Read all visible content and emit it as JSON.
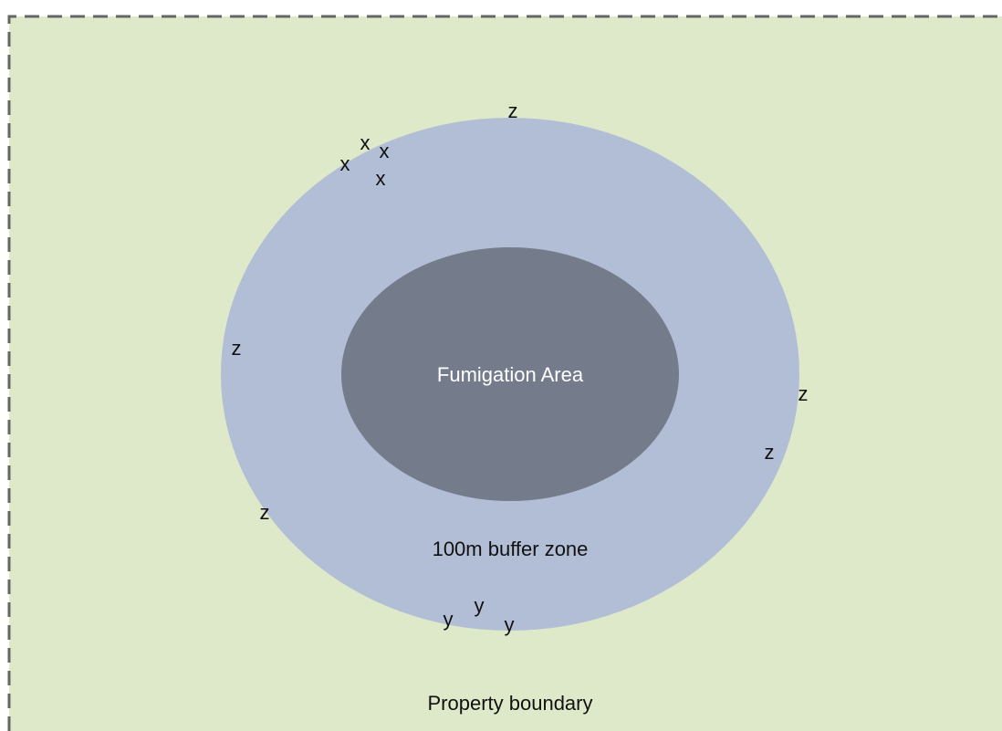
{
  "diagram": {
    "zones": {
      "inner": "Fumigation Area",
      "buffer": "100m buffer zone",
      "property": "Property boundary"
    },
    "markers": [
      "x",
      "x",
      "x",
      "x",
      "y",
      "y",
      "y",
      "z",
      "z",
      "z",
      "z",
      "z"
    ]
  }
}
